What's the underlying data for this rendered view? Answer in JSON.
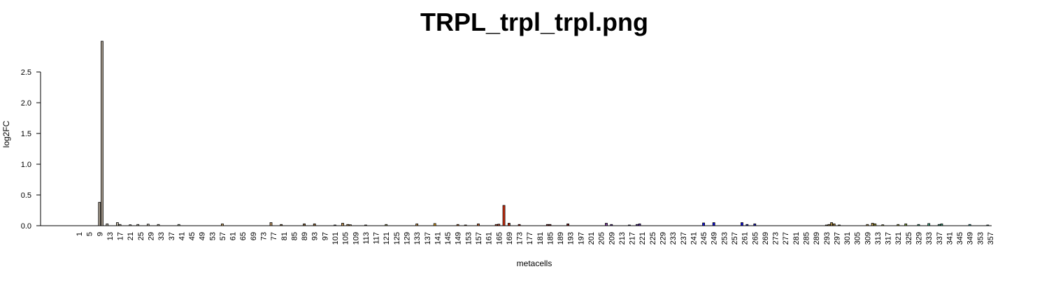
{
  "chart_data": {
    "type": "bar",
    "title": "TRPL_trpl_trpl.png",
    "xlabel": "metacells",
    "ylabel": "log2FC",
    "ylim": [
      0,
      3.0
    ],
    "yticks": [
      0.0,
      0.5,
      1.0,
      1.5,
      2.0,
      2.5
    ],
    "ytick_labels": [
      "0.0",
      "0.5",
      "1.0",
      "1.5",
      "2.0",
      "2.5"
    ],
    "xrange": [
      1,
      357
    ],
    "xticks": [
      1,
      5,
      9,
      13,
      17,
      21,
      25,
      29,
      33,
      37,
      41,
      45,
      49,
      53,
      57,
      61,
      65,
      69,
      73,
      77,
      81,
      85,
      89,
      93,
      97,
      101,
      105,
      109,
      113,
      117,
      121,
      125,
      129,
      133,
      137,
      141,
      145,
      149,
      153,
      157,
      161,
      165,
      169,
      173,
      177,
      181,
      185,
      189,
      193,
      197,
      201,
      205,
      209,
      213,
      217,
      221,
      225,
      229,
      233,
      237,
      241,
      245,
      249,
      253,
      257,
      261,
      265,
      269,
      273,
      277,
      281,
      285,
      289,
      293,
      297,
      301,
      305,
      309,
      313,
      317,
      321,
      325,
      329,
      333,
      337,
      341,
      345,
      349,
      353,
      357
    ],
    "xtick_labels": [
      "1",
      "5",
      "9",
      "13",
      "17",
      "21",
      "25",
      "29",
      "33",
      "37",
      "41",
      "45",
      "49",
      "53",
      "57",
      "61",
      "65",
      "69",
      "73",
      "77",
      "81",
      "85",
      "89",
      "93",
      "97",
      "101",
      "105",
      "109",
      "113",
      "117",
      "121",
      "125",
      "129",
      "133",
      "137",
      "141",
      "145",
      "149",
      "153",
      "157",
      "161",
      "165",
      "169",
      "173",
      "177",
      "181",
      "185",
      "189",
      "193",
      "197",
      "201",
      "205",
      "209",
      "213",
      "217",
      "221",
      "225",
      "229",
      "233",
      "237",
      "241",
      "245",
      "249",
      "253",
      "257",
      "261",
      "265",
      "269",
      "273",
      "277",
      "281",
      "285",
      "289",
      "293",
      "297",
      "301",
      "305",
      "309",
      "313",
      "317",
      "321",
      "325",
      "329",
      "333",
      "337",
      "341",
      "345",
      "349",
      "353",
      "357"
    ],
    "grid": false,
    "bars": [
      {
        "x": 9,
        "value": 0.38,
        "color": "#a59a8c"
      },
      {
        "x": 10,
        "value": 3.0,
        "color": "#a59a8c"
      },
      {
        "x": 12,
        "value": 0.03,
        "color": "#b8b0a0"
      },
      {
        "x": 16,
        "value": 0.05,
        "color": "#b8b0a0"
      },
      {
        "x": 17,
        "value": 0.02,
        "color": "#b8b0a0"
      },
      {
        "x": 21,
        "value": 0.015,
        "color": "#b8b0a0"
      },
      {
        "x": 24,
        "value": 0.02,
        "color": "#b8b0a0"
      },
      {
        "x": 28,
        "value": 0.025,
        "color": "#b8b0a0"
      },
      {
        "x": 32,
        "value": 0.02,
        "color": "#b8b0a0"
      },
      {
        "x": 40,
        "value": 0.02,
        "color": "#a8b8a0"
      },
      {
        "x": 57,
        "value": 0.03,
        "color": "#c8a060"
      },
      {
        "x": 76,
        "value": 0.05,
        "color": "#b89060"
      },
      {
        "x": 80,
        "value": 0.02,
        "color": "#8a6a40"
      },
      {
        "x": 89,
        "value": 0.03,
        "color": "#8a6a40"
      },
      {
        "x": 93,
        "value": 0.03,
        "color": "#9a7040"
      },
      {
        "x": 101,
        "value": 0.01,
        "color": "#8080a0"
      },
      {
        "x": 104,
        "value": 0.04,
        "color": "#c09050"
      },
      {
        "x": 106,
        "value": 0.02,
        "color": "#c09050"
      },
      {
        "x": 107,
        "value": 0.015,
        "color": "#c09050"
      },
      {
        "x": 113,
        "value": 0.01,
        "color": "#9a8060"
      },
      {
        "x": 121,
        "value": 0.02,
        "color": "#a0a060"
      },
      {
        "x": 133,
        "value": 0.03,
        "color": "#c09050"
      },
      {
        "x": 140,
        "value": 0.035,
        "color": "#e0a020"
      },
      {
        "x": 149,
        "value": 0.02,
        "color": "#c07030"
      },
      {
        "x": 152,
        "value": 0.01,
        "color": "#c07030"
      },
      {
        "x": 157,
        "value": 0.03,
        "color": "#c06030"
      },
      {
        "x": 164,
        "value": 0.02,
        "color": "#c04020"
      },
      {
        "x": 165,
        "value": 0.025,
        "color": "#c04020"
      },
      {
        "x": 167,
        "value": 0.33,
        "color": "#d83010"
      },
      {
        "x": 169,
        "value": 0.04,
        "color": "#c03010"
      },
      {
        "x": 173,
        "value": 0.02,
        "color": "#a02010"
      },
      {
        "x": 184,
        "value": 0.02,
        "color": "#802020"
      },
      {
        "x": 185,
        "value": 0.02,
        "color": "#802020"
      },
      {
        "x": 192,
        "value": 0.03,
        "color": "#802020"
      },
      {
        "x": 207,
        "value": 0.04,
        "color": "#8040a0"
      },
      {
        "x": 209,
        "value": 0.02,
        "color": "#6030a0"
      },
      {
        "x": 216,
        "value": 0.01,
        "color": "#4040a0"
      },
      {
        "x": 219,
        "value": 0.02,
        "color": "#6030b0"
      },
      {
        "x": 220,
        "value": 0.03,
        "color": "#6030b0"
      },
      {
        "x": 245,
        "value": 0.045,
        "color": "#1010e0"
      },
      {
        "x": 249,
        "value": 0.05,
        "color": "#1010e0"
      },
      {
        "x": 260,
        "value": 0.05,
        "color": "#1010e0"
      },
      {
        "x": 262,
        "value": 0.02,
        "color": "#2020c0"
      },
      {
        "x": 265,
        "value": 0.03,
        "color": "#2020c0"
      },
      {
        "x": 293,
        "value": 0.01,
        "color": "#a08040"
      },
      {
        "x": 294,
        "value": 0.02,
        "color": "#a08040"
      },
      {
        "x": 295,
        "value": 0.05,
        "color": "#a08040"
      },
      {
        "x": 296,
        "value": 0.03,
        "color": "#a08040"
      },
      {
        "x": 298,
        "value": 0.01,
        "color": "#a08040"
      },
      {
        "x": 309,
        "value": 0.02,
        "color": "#c0a050"
      },
      {
        "x": 311,
        "value": 0.04,
        "color": "#c0a050"
      },
      {
        "x": 312,
        "value": 0.03,
        "color": "#a0a040"
      },
      {
        "x": 315,
        "value": 0.015,
        "color": "#a0a040"
      },
      {
        "x": 321,
        "value": 0.02,
        "color": "#a0a040"
      },
      {
        "x": 324,
        "value": 0.03,
        "color": "#80a040"
      },
      {
        "x": 329,
        "value": 0.02,
        "color": "#40a080"
      },
      {
        "x": 333,
        "value": 0.035,
        "color": "#40a080"
      },
      {
        "x": 337,
        "value": 0.02,
        "color": "#40a080"
      },
      {
        "x": 338,
        "value": 0.03,
        "color": "#40a080"
      },
      {
        "x": 349,
        "value": 0.02,
        "color": "#40b0b0"
      },
      {
        "x": 356,
        "value": 0.01,
        "color": "#40a0a0"
      }
    ]
  }
}
